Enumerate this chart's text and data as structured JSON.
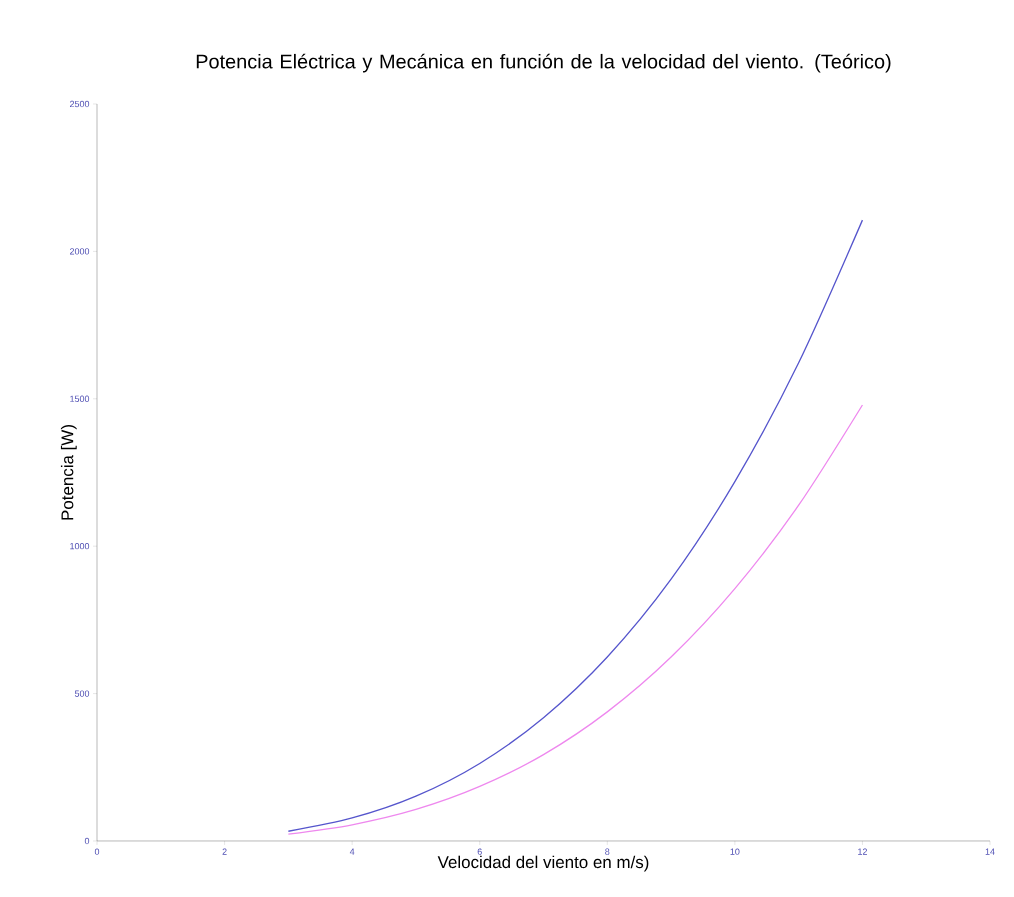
{
  "chart_data": {
    "type": "line",
    "title": "Potencia Eléctrica y Mecánica en función de la velocidad del viento. (Teórico)",
    "xlabel": "Velocidad del viento en m/s)",
    "ylabel": "Potencia [W)",
    "x": [
      3,
      4,
      5,
      6,
      7,
      8,
      9,
      10,
      11,
      12
    ],
    "series": [
      {
        "color": "#5555cc",
        "values": [
          33,
          78,
          152,
          263,
          418,
          624,
          888,
          1219,
          1622,
          2106
        ]
      },
      {
        "color": "#ee88ee",
        "values": [
          23,
          55,
          107,
          185,
          293,
          438,
          624,
          856,
          1139,
          1479
        ]
      }
    ],
    "xlim": [
      0,
      14
    ],
    "xticks": [
      0,
      2,
      4,
      6,
      8,
      10,
      12,
      14
    ],
    "ylim": [
      0,
      2500
    ],
    "yticks": [
      0,
      500,
      1000,
      1500,
      2000,
      2500
    ],
    "grid": false,
    "marker": "none",
    "line_style": "solid"
  }
}
